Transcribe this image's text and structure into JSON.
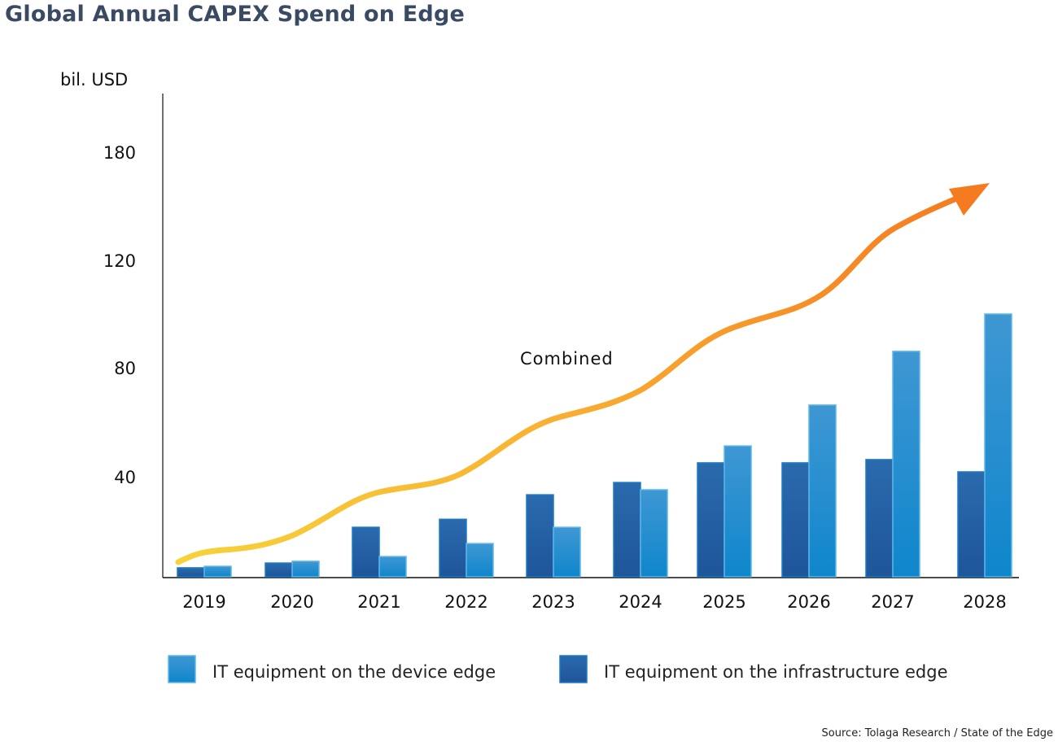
{
  "chart_data": {
    "type": "bar",
    "title": "Global Annual CAPEX Spend on Edge",
    "ylabel": "bil. USD",
    "xlabel": "",
    "categories": [
      "2019",
      "2020",
      "2021",
      "2022",
      "2023",
      "2024",
      "2025",
      "2026",
      "2027",
      "2028"
    ],
    "yticks": [
      40,
      80,
      120,
      180
    ],
    "ylim": [
      0,
      200
    ],
    "series": [
      {
        "name": "IT equipment on the infrastructure edge",
        "color": "#2563a6",
        "values": [
          3.6,
          5.5,
          19.8,
          23.0,
          32.8,
          37.7,
          45.1,
          45.1,
          46.3,
          41.8
        ]
      },
      {
        "name": "IT equipment on the device edge",
        "color": "#3b95d4",
        "values": [
          4.2,
          6.2,
          8.1,
          13.3,
          19.8,
          34.8,
          51.3,
          66.3,
          86.1,
          100.0
        ]
      }
    ],
    "trend_line": {
      "label": "Combined",
      "color_start": "#f7d23a",
      "color_end": "#f47b20",
      "arrow": true
    },
    "legend": [
      {
        "label": "IT equipment on the device edge",
        "color": "#3b95d4"
      },
      {
        "label": "IT equipment on the infrastructure edge",
        "color": "#2563a6"
      }
    ],
    "legend_position": "bottom",
    "grid": false,
    "source": "Source: Tolaga Research / State of the Edge"
  }
}
